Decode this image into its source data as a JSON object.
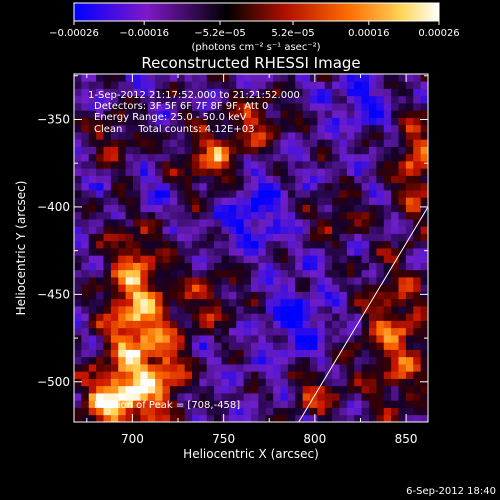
{
  "chart_data": {
    "type": "heatmap",
    "title": "Reconstructed RHESSI Image",
    "xlabel": "Heliocentric X (arcsec)",
    "ylabel": "Heliocentric Y (arcsec)",
    "xlim": [
      668,
      862
    ],
    "ylim": [
      -523,
      -324
    ],
    "x_ticks": [
      700,
      750,
      800,
      850
    ],
    "x_tick_labels": [
      "700",
      "750",
      "800",
      "850"
    ],
    "y_ticks": [
      -350,
      -400,
      -450,
      -500
    ],
    "y_tick_labels": [
      "−350",
      "−400",
      "−450",
      "−500"
    ],
    "colorbar": {
      "range": [
        -0.00026,
        0.00026
      ],
      "tick_values": [
        -0.00026,
        -0.00016,
        -5.2e-05,
        5.2e-05,
        0.00016,
        0.00026
      ],
      "tick_labels": [
        "−0.00026",
        "−0.00016",
        "−5.2e−05",
        "5.2e−05",
        "0.00016",
        "0.00026"
      ],
      "units": "(photons cm⁻² s⁻¹ asec⁻²)",
      "colormap": [
        "#0000ff",
        "#7e18c8",
        "#000000",
        "#b01000",
        "#ff6a00",
        "#ffd75a",
        "#ffffff"
      ]
    },
    "annotations": {
      "time_range": "1-Sep-2012 21:17:52.000 to 21:21:52.000",
      "detectors": "Detectors: 3F 5F 6F 7F 8F 9F, Att 0",
      "energy": "Energy Range: 25.0 - 50.0 keV",
      "method": "Clean     Total counts: 4.12E+03",
      "peak": "Position of Peak = [708,-458]"
    },
    "limb_line": {
      "points": [
        [
          790,
          -525
        ],
        [
          862,
          -400
        ]
      ],
      "color": "#ffffff"
    },
    "grid": false,
    "image_grid": {
      "nx": 48,
      "ny": 48
    },
    "bright_regions": [
      {
        "x": 702,
        "y": -462,
        "sx": 12,
        "sy": 38,
        "amp": 1.0
      },
      {
        "x": 690,
        "y": -510,
        "sx": 14,
        "sy": 12,
        "amp": 0.9
      },
      {
        "x": 745,
        "y": -373,
        "sx": 14,
        "sy": 14,
        "amp": 0.7
      },
      {
        "x": 770,
        "y": -350,
        "sx": 12,
        "sy": 10,
        "amp": 0.55
      },
      {
        "x": 855,
        "y": -375,
        "sx": 8,
        "sy": 20,
        "amp": 0.75
      },
      {
        "x": 845,
        "y": -475,
        "sx": 14,
        "sy": 30,
        "amp": 0.7
      },
      {
        "x": 742,
        "y": -452,
        "sx": 12,
        "sy": 12,
        "amp": 0.5
      },
      {
        "x": 812,
        "y": -405,
        "sx": 10,
        "sy": 10,
        "amp": 0.45
      },
      {
        "x": 800,
        "y": -507,
        "sx": 10,
        "sy": 10,
        "amp": 0.5
      },
      {
        "x": 720,
        "y": -495,
        "sx": 8,
        "sy": 18,
        "amp": 0.55
      },
      {
        "x": 690,
        "y": -360,
        "sx": 10,
        "sy": 10,
        "amp": 0.45
      }
    ],
    "dark_regions": [
      {
        "x": 765,
        "y": -400,
        "sx": 12,
        "sy": 16,
        "amp": 0.55
      },
      {
        "x": 825,
        "y": -340,
        "sx": 12,
        "sy": 10,
        "amp": 0.45
      },
      {
        "x": 790,
        "y": -465,
        "sx": 12,
        "sy": 14,
        "amp": 0.5
      },
      {
        "x": 710,
        "y": -395,
        "sx": 8,
        "sy": 12,
        "amp": 0.4
      }
    ]
  },
  "footer": {
    "date": "6-Sep-2012 18:40"
  }
}
